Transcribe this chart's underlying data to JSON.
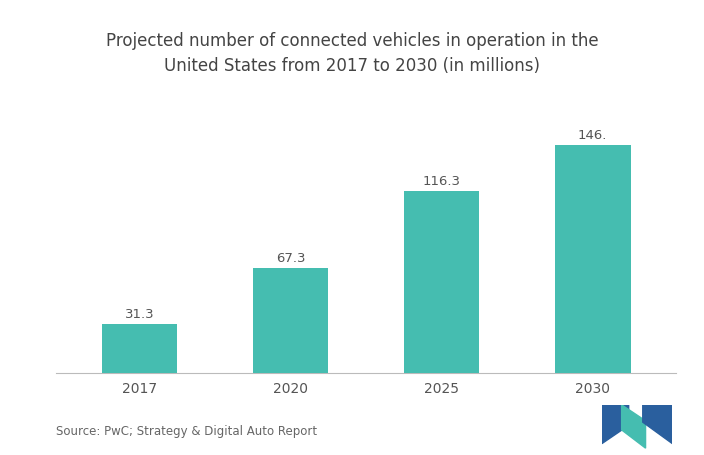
{
  "categories": [
    "2017",
    "2020",
    "2025",
    "2030"
  ],
  "values": [
    31.3,
    67.3,
    116.3,
    146.0
  ],
  "labels": [
    "31.3",
    "67.3",
    "116.3",
    "146."
  ],
  "bar_color": "#45BDB0",
  "title_line1": "Projected number of connected vehicles in operation in the",
  "title_line2": "United States from 2017 to 2030 (in millions)",
  "source_text": "Source: PwC; Strategy & Digital Auto Report",
  "background_color": "#ffffff",
  "title_fontsize": 12,
  "label_fontsize": 9.5,
  "tick_fontsize": 10,
  "source_fontsize": 8.5,
  "ylim": [
    0,
    175
  ],
  "bar_width": 0.5,
  "logo_dark_blue": "#2a5f9e",
  "logo_teal": "#45BDB0"
}
